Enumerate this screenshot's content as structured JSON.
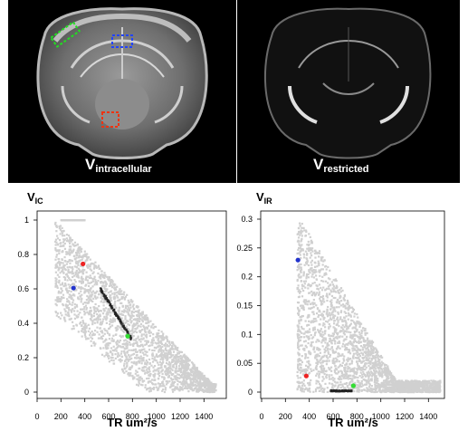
{
  "images": {
    "left": {
      "caption_main": "V",
      "caption_sub": "intracellular",
      "roi_colors": {
        "cortex": "#22dd22",
        "hippocampus": "#2244ff",
        "thalamus": "#ee3311"
      }
    },
    "right": {
      "caption_main": "V",
      "caption_sub": "restricted"
    }
  },
  "chart_data": [
    {
      "type": "scatter",
      "title": "",
      "ylabel_main": "V",
      "ylabel_sub": "IC",
      "xlabel": "TR um²/s",
      "xlim": [
        0,
        1500
      ],
      "ylim": [
        0,
        1
      ],
      "x_ticks": [
        "0",
        "200",
        "400",
        "600",
        "800",
        "1000",
        "1200",
        "1400"
      ],
      "y_ticks": [
        "0",
        "0.2",
        "0.4",
        "0.6",
        "0.8",
        "1"
      ],
      "cloud_color": "#d0d0d0",
      "density_color": "#222222",
      "highlight_points": [
        {
          "x": 385,
          "y": 0.745,
          "color": "#ee2222"
        },
        {
          "x": 305,
          "y": 0.605,
          "color": "#2233cc"
        },
        {
          "x": 760,
          "y": 0.325,
          "color": "#33dd33"
        }
      ]
    },
    {
      "type": "scatter",
      "title": "",
      "ylabel_main": "V",
      "ylabel_sub": "IR",
      "xlabel": "TR um²/s",
      "xlim": [
        0,
        1500
      ],
      "ylim": [
        0,
        0.3
      ],
      "x_ticks": [
        "0",
        "200",
        "400",
        "600",
        "800",
        "1000",
        "1200",
        "1400"
      ],
      "y_ticks": [
        "0",
        "0.05",
        "0.1",
        "0.15",
        "0.2",
        "0.25",
        "0.3"
      ],
      "cloud_color": "#d0d0d0",
      "density_color": "#222222",
      "highlight_points": [
        {
          "x": 305,
          "y": 0.229,
          "color": "#2233cc"
        },
        {
          "x": 375,
          "y": 0.028,
          "color": "#ee2222"
        },
        {
          "x": 770,
          "y": 0.011,
          "color": "#33dd33"
        }
      ]
    }
  ]
}
